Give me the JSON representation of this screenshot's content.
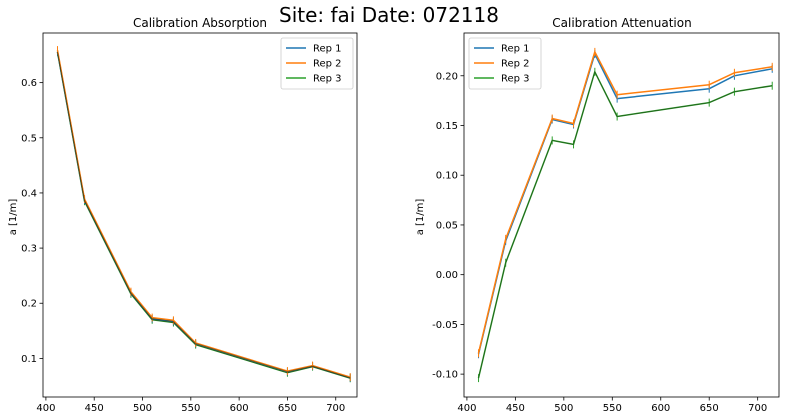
{
  "figure": {
    "suptitle": "Site: fai Date: 072118"
  },
  "chart_data": [
    {
      "type": "line",
      "title": "Calibration Absorption",
      "xlabel": "",
      "ylabel": "a [1/m]",
      "xlim": [
        397,
        722
      ],
      "ylim": [
        0.03,
        0.69
      ],
      "xticks": [
        400,
        450,
        500,
        550,
        600,
        650,
        700
      ],
      "yticks": [
        0.1,
        0.2,
        0.3,
        0.4,
        0.5,
        0.6
      ],
      "grid": false,
      "legend_position": "top-right",
      "x": [
        412,
        440,
        488,
        510,
        532,
        555,
        650,
        676,
        715
      ],
      "series": [
        {
          "name": "Rep 1",
          "color": "#1f77b4",
          "values": [
            0.656,
            0.387,
            0.219,
            0.172,
            0.167,
            0.127,
            0.076,
            0.086,
            0.065
          ]
        },
        {
          "name": "Rep 2",
          "color": "#ff7f0e",
          "values": [
            0.659,
            0.389,
            0.221,
            0.174,
            0.169,
            0.128,
            0.077,
            0.087,
            0.066
          ]
        },
        {
          "name": "Rep 3",
          "color": "#2ca02c",
          "values": [
            0.655,
            0.385,
            0.217,
            0.17,
            0.165,
            0.125,
            0.074,
            0.085,
            0.064
          ]
        }
      ]
    },
    {
      "type": "line",
      "title": "Calibration Attenuation",
      "xlabel": "",
      "ylabel": "a [1/m]",
      "xlim": [
        397,
        722
      ],
      "ylim": [
        -0.123,
        0.243
      ],
      "xticks": [
        400,
        450,
        500,
        550,
        600,
        650,
        700
      ],
      "yticks": [
        -0.1,
        -0.05,
        0.0,
        0.05,
        0.1,
        0.15,
        0.2
      ],
      "grid": false,
      "legend_position": "top-left",
      "x": [
        412,
        440,
        488,
        510,
        532,
        555,
        650,
        676,
        715
      ],
      "series": [
        {
          "name": "Rep 1",
          "color": "#1f77b4",
          "values": [
            -0.08,
            0.034,
            0.156,
            0.151,
            0.222,
            0.177,
            0.187,
            0.2,
            0.207
          ]
        },
        {
          "name": "Rep 2",
          "color": "#ff7f0e",
          "values": [
            -0.079,
            0.036,
            0.157,
            0.152,
            0.224,
            0.181,
            0.191,
            0.203,
            0.209
          ]
        },
        {
          "name": "Rep 3",
          "color": "#2ca02c",
          "values": [
            -0.104,
            0.012,
            0.135,
            0.131,
            0.204,
            0.159,
            0.173,
            0.184,
            0.19
          ]
        }
      ]
    }
  ]
}
